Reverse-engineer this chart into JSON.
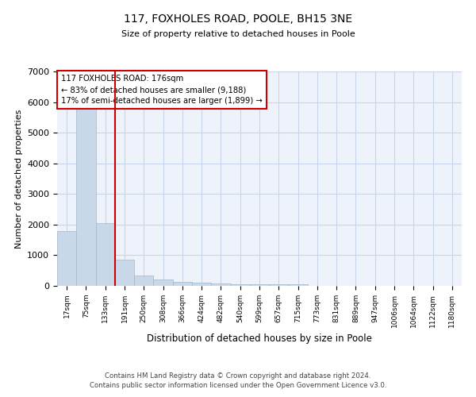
{
  "title": "117, FOXHOLES ROAD, POOLE, BH15 3NE",
  "subtitle": "Size of property relative to detached houses in Poole",
  "xlabel": "Distribution of detached houses by size in Poole",
  "ylabel": "Number of detached properties",
  "footer_line1": "Contains HM Land Registry data © Crown copyright and database right 2024.",
  "footer_line2": "Contains public sector information licensed under the Open Government Licence v3.0.",
  "categories": [
    "17sqm",
    "75sqm",
    "133sqm",
    "191sqm",
    "250sqm",
    "308sqm",
    "366sqm",
    "424sqm",
    "482sqm",
    "540sqm",
    "599sqm",
    "657sqm",
    "715sqm",
    "773sqm",
    "831sqm",
    "889sqm",
    "947sqm",
    "1006sqm",
    "1064sqm",
    "1122sqm",
    "1180sqm"
  ],
  "bar_values": [
    1800,
    5800,
    2050,
    850,
    340,
    200,
    130,
    100,
    80,
    60,
    55,
    50,
    40,
    0,
    0,
    0,
    0,
    0,
    0,
    0,
    0
  ],
  "bar_color": "#c8d8e8",
  "bar_edge_color": "#a0b8cc",
  "grid_color": "#c8d4e8",
  "background_color": "#eef2fa",
  "red_line_color": "#cc0000",
  "annotation_text": "117 FOXHOLES ROAD: 176sqm\n← 83% of detached houses are smaller (9,188)\n17% of semi-detached houses are larger (1,899) →",
  "annotation_box_color": "white",
  "annotation_box_edge_color": "#cc0000",
  "ylim": [
    0,
    7000
  ],
  "yticks": [
    0,
    1000,
    2000,
    3000,
    4000,
    5000,
    6000,
    7000
  ]
}
